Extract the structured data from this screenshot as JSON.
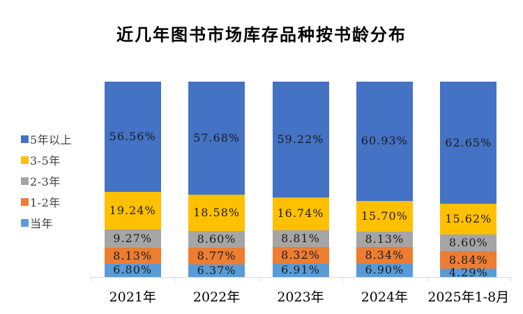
{
  "chart_data": {
    "type": "bar",
    "stacked": true,
    "title": "近几年图书市场库存品种按书龄分布",
    "legend_position": "left",
    "ylim": [
      0,
      100
    ],
    "grid": false,
    "axis_color": "#d9d9d9",
    "categories": [
      "2021年",
      "2022年",
      "2023年",
      "2024年",
      "2025年1-8月"
    ],
    "series": [
      {
        "name": "5年以上",
        "color": "#4472C4",
        "values": [
          56.56,
          57.68,
          59.22,
          60.93,
          62.65
        ],
        "labels": [
          "56.56%",
          "57.68%",
          "59.22%",
          "60.93%",
          "62.65%"
        ]
      },
      {
        "name": "3-5年",
        "color": "#FFC000",
        "values": [
          19.24,
          18.58,
          16.74,
          15.7,
          15.62
        ],
        "labels": [
          "19.24%",
          "18.58%",
          "16.74%",
          "15.70%",
          "15.62%"
        ]
      },
      {
        "name": "2-3年",
        "color": "#A5A5A5",
        "values": [
          9.27,
          8.6,
          8.81,
          8.13,
          8.6
        ],
        "labels": [
          "9.27%",
          "8.60%",
          "8.81%",
          "8.13%",
          "8.60%"
        ]
      },
      {
        "name": "1-2年",
        "color": "#ED7D31",
        "values": [
          8.13,
          8.77,
          8.32,
          8.34,
          8.84
        ],
        "labels": [
          "8.13%",
          "8.77%",
          "8.32%",
          "8.34%",
          "8.84%"
        ]
      },
      {
        "name": "当年",
        "color": "#5B9BD5",
        "values": [
          6.8,
          6.37,
          6.91,
          6.9,
          4.29
        ],
        "labels": [
          "6.80%",
          "6.37%",
          "6.91%",
          "6.90%",
          "4.29%"
        ]
      }
    ]
  }
}
